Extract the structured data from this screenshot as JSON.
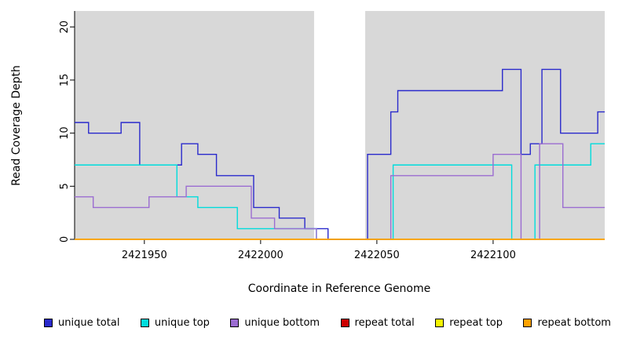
{
  "chart_data": {
    "type": "line",
    "subtype": "step",
    "title": "",
    "xlabel": "Coordinate in Reference Genome",
    "ylabel": "Read Coverage Depth",
    "xlim": [
      2421920,
      2422148
    ],
    "ylim": [
      0,
      21.5
    ],
    "xticks": [
      2421950,
      2422000,
      2422050,
      2422100
    ],
    "yticks": [
      0,
      5,
      10,
      15,
      20
    ],
    "grid": false,
    "legend_position": "bottom",
    "plot_background": "#d8d8d8",
    "gap_region": {
      "start": 2422023,
      "end": 2422045,
      "color": "#ffffff"
    },
    "series": [
      {
        "name": "unique total",
        "color": "#2a2acc",
        "points": [
          [
            2421920,
            11
          ],
          [
            2421926,
            10
          ],
          [
            2421940,
            11
          ],
          [
            2421948,
            7
          ],
          [
            2421966,
            9
          ],
          [
            2421973,
            8
          ],
          [
            2421981,
            6
          ],
          [
            2421997,
            3
          ],
          [
            2422008,
            2
          ],
          [
            2422019,
            1
          ],
          [
            2422029,
            0
          ],
          [
            2422046,
            8
          ],
          [
            2422056,
            12
          ],
          [
            2422059,
            14
          ],
          [
            2422104,
            16
          ],
          [
            2422112,
            8
          ],
          [
            2422116,
            9
          ],
          [
            2422121,
            16
          ],
          [
            2422129,
            10
          ],
          [
            2422145,
            12
          ]
        ]
      },
      {
        "name": "unique top",
        "color": "#00dcdc",
        "points": [
          [
            2421920,
            7
          ],
          [
            2421964,
            4
          ],
          [
            2421973,
            3
          ],
          [
            2421990,
            1
          ],
          [
            2422024,
            0
          ],
          [
            2422057,
            7
          ],
          [
            2422108,
            0
          ],
          [
            2422118,
            7
          ],
          [
            2422142,
            9
          ]
        ]
      },
      {
        "name": "unique bottom",
        "color": "#9b6cd1",
        "points": [
          [
            2421920,
            4
          ],
          [
            2421928,
            3
          ],
          [
            2421952,
            4
          ],
          [
            2421968,
            5
          ],
          [
            2421996,
            2
          ],
          [
            2422006,
            1
          ],
          [
            2422024,
            0
          ],
          [
            2422056,
            6
          ],
          [
            2422100,
            8
          ],
          [
            2422112,
            0
          ],
          [
            2422120,
            9
          ],
          [
            2422130,
            3
          ]
        ]
      },
      {
        "name": "repeat total",
        "color": "#cc0000",
        "points": [
          [
            2421920,
            0
          ]
        ]
      },
      {
        "name": "repeat top",
        "color": "#f5f500",
        "points": [
          [
            2421920,
            0
          ]
        ]
      },
      {
        "name": "repeat bottom",
        "color": "#ffa200",
        "points": [
          [
            2421920,
            0
          ]
        ]
      }
    ]
  },
  "legend": {
    "items": [
      {
        "label": "unique total",
        "color": "#2a2acc"
      },
      {
        "label": "unique top",
        "color": "#00dcdc"
      },
      {
        "label": "unique bottom",
        "color": "#9b6cd1"
      },
      {
        "label": "repeat total",
        "color": "#cc0000"
      },
      {
        "label": "repeat top",
        "color": "#f5f500"
      },
      {
        "label": "repeat bottom",
        "color": "#ffa200"
      }
    ]
  }
}
